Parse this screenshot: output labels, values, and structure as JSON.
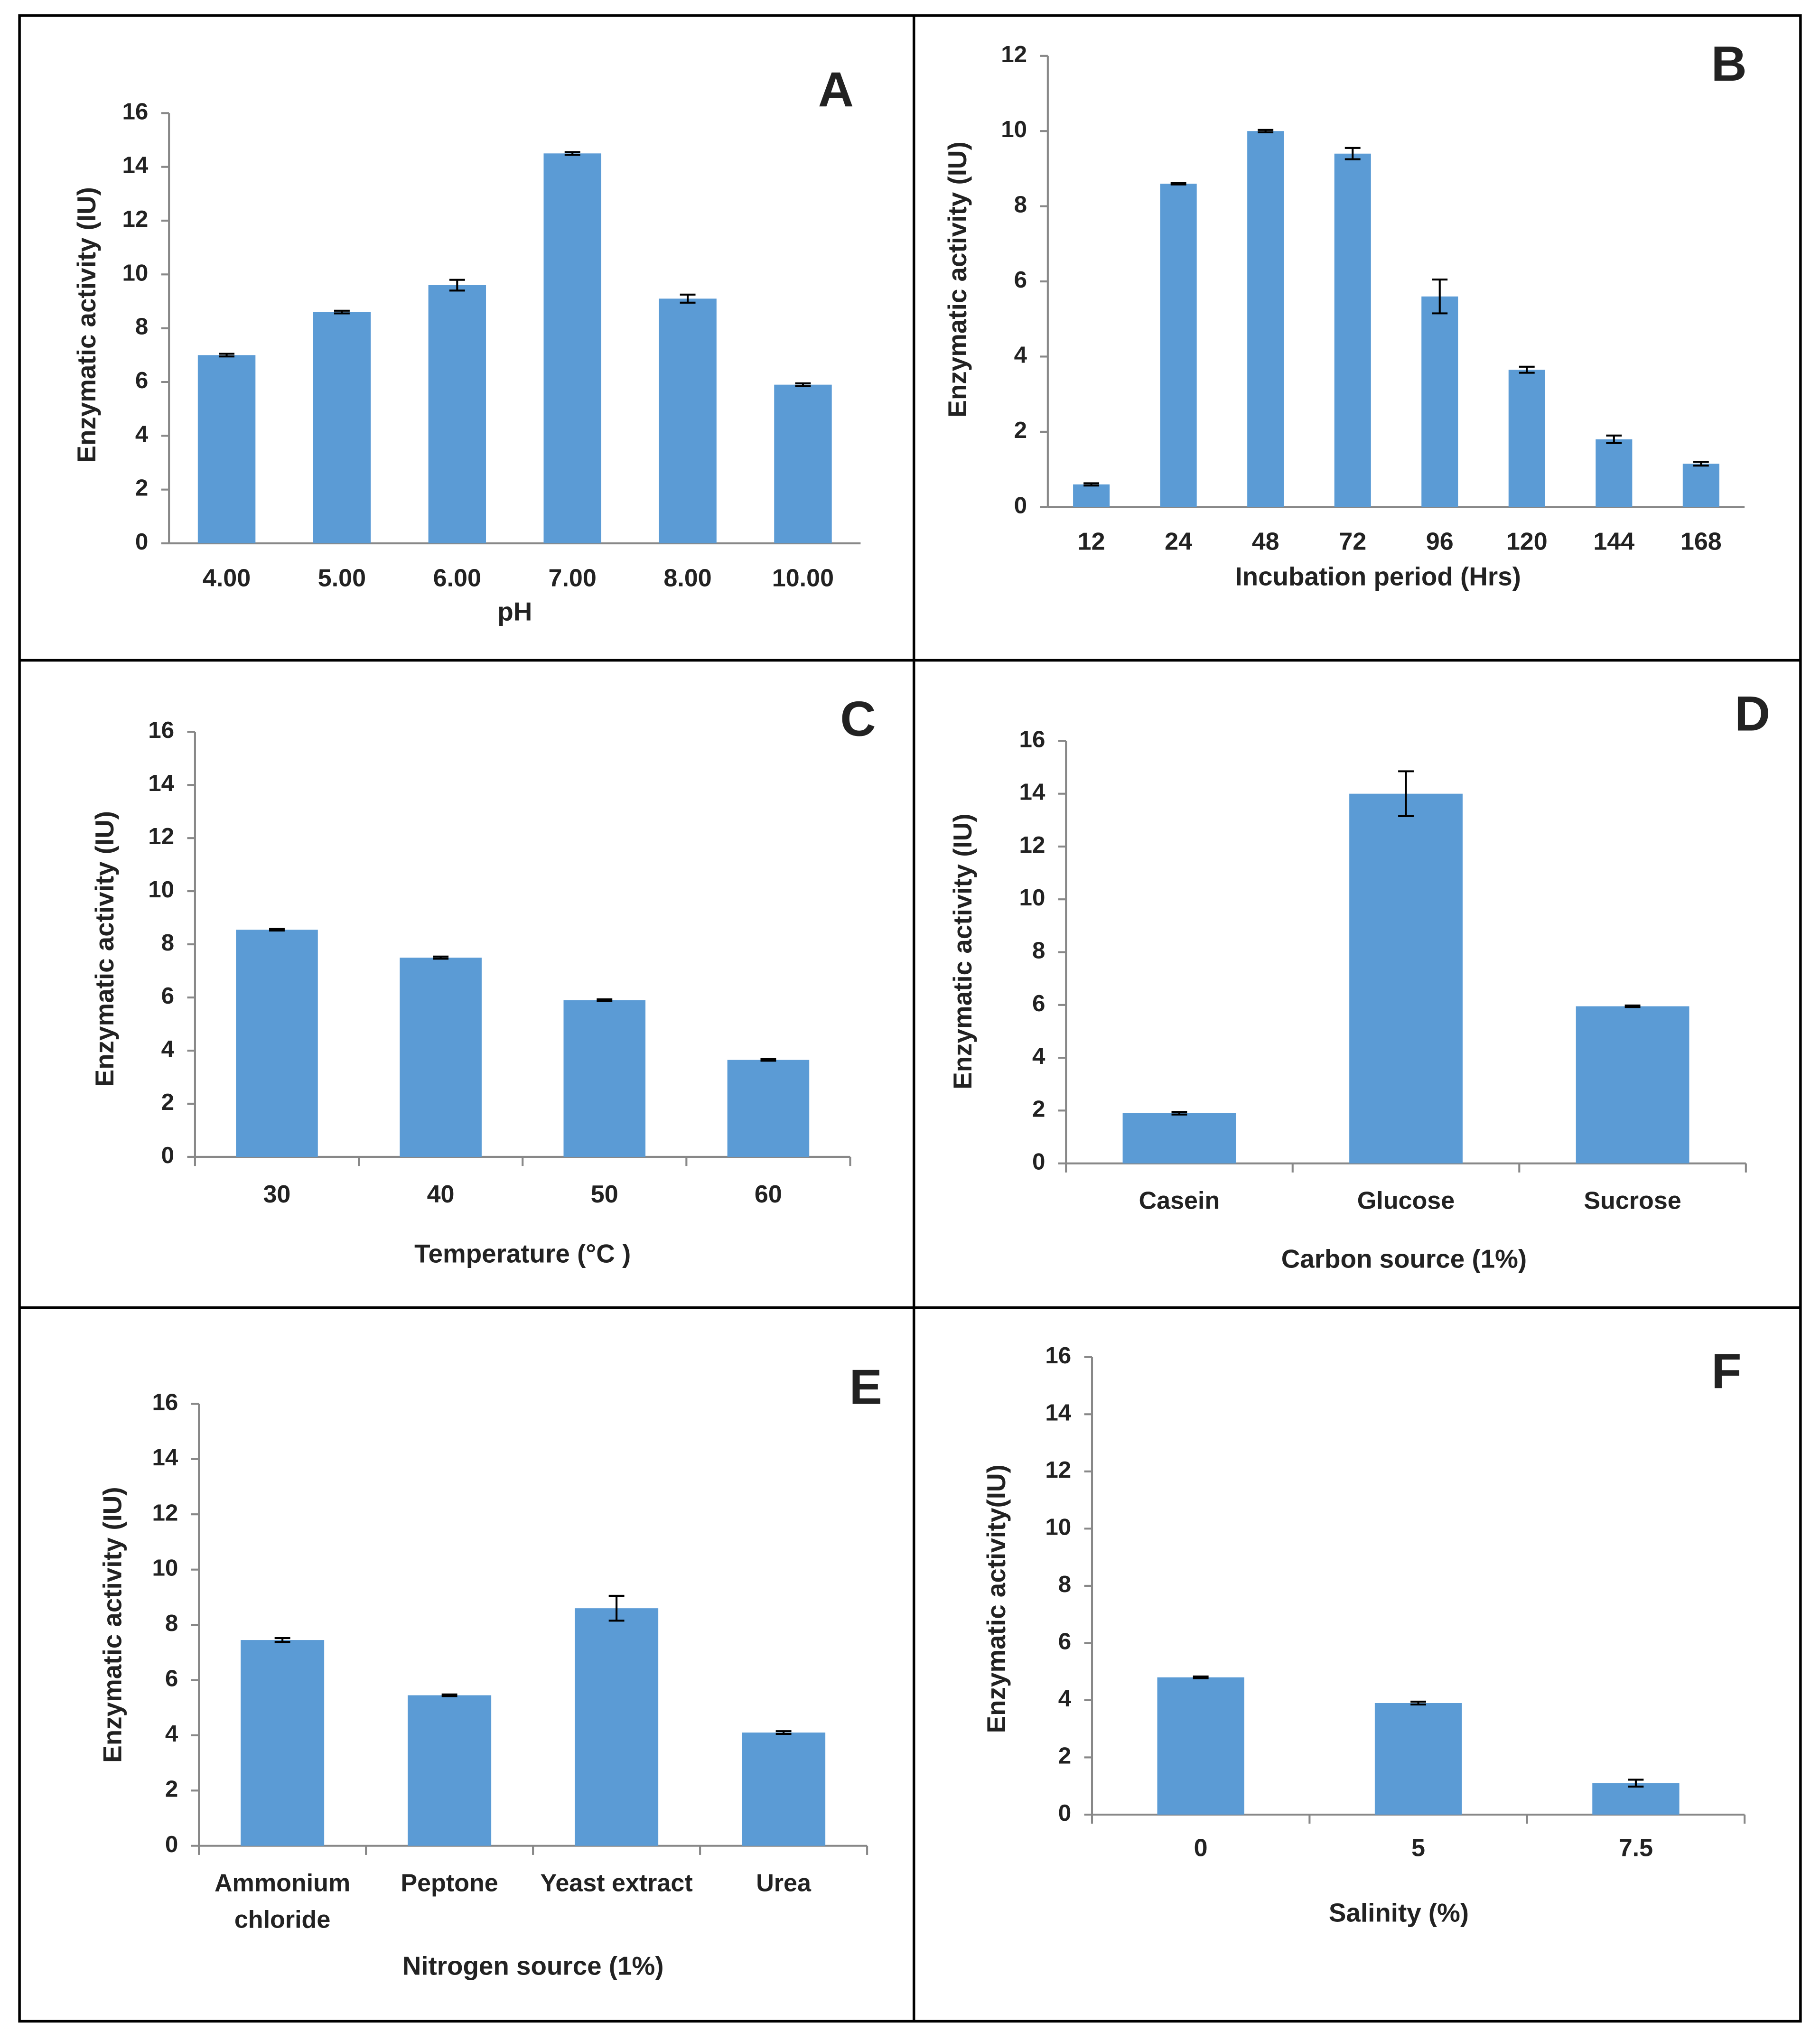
{
  "chart_data": [
    {
      "type": "bar",
      "panel": "A",
      "x_label": "pH",
      "y_label": "Enzymatic activity (IU)",
      "categories": [
        "4.00",
        "5.00",
        "6.00",
        "7.00",
        "8.00",
        "10.00"
      ],
      "values": [
        7.0,
        8.6,
        9.6,
        14.5,
        9.1,
        5.9
      ],
      "errors": [
        0.05,
        0.05,
        0.2,
        0.05,
        0.15,
        0.05
      ],
      "color": "#5b9bd5",
      "ylim": [
        0,
        16
      ],
      "yticks": [
        0,
        2,
        4,
        6,
        8,
        10,
        12,
        14,
        16
      ]
    },
    {
      "type": "bar",
      "panel": "B",
      "x_label": "Incubation period (Hrs)",
      "y_label": "Enzymatic activity (IU)",
      "categories": [
        "12",
        "24",
        "48",
        "72",
        "96",
        "120",
        "144",
        "168"
      ],
      "values": [
        0.6,
        8.6,
        10.0,
        9.4,
        5.6,
        3.65,
        1.8,
        1.15
      ],
      "errors": [
        0.03,
        0.02,
        0.03,
        0.15,
        0.45,
        0.08,
        0.1,
        0.05
      ],
      "color": "#5b9bd5",
      "ylim": [
        0,
        12
      ],
      "yticks": [
        0,
        2,
        4,
        6,
        8,
        10,
        12
      ]
    },
    {
      "type": "bar",
      "panel": "C",
      "x_label": "Temperature (°C )",
      "y_label": "Enzymatic activity (IU)",
      "categories": [
        "30",
        "40",
        "50",
        "60"
      ],
      "values": [
        8.55,
        7.5,
        5.9,
        3.65
      ],
      "errors": [
        0.03,
        0.04,
        0.03,
        0.03
      ],
      "color": "#5b9bd5",
      "ylim": [
        0,
        16
      ],
      "yticks": [
        0,
        2,
        4,
        6,
        8,
        10,
        12,
        14,
        16
      ]
    },
    {
      "type": "bar",
      "panel": "D",
      "x_label": "Carbon source (1%)",
      "y_label": "Enzymatic activity (IU)",
      "categories": [
        "Casein",
        "Glucose",
        "Sucrose"
      ],
      "values": [
        1.9,
        14.0,
        5.95
      ],
      "errors": [
        0.05,
        0.85,
        0.03
      ],
      "color": "#5b9bd5",
      "ylim": [
        0,
        16
      ],
      "yticks": [
        0,
        2,
        4,
        6,
        8,
        10,
        12,
        14,
        16
      ]
    },
    {
      "type": "bar",
      "panel": "E",
      "x_label": "Nitrogen source (1%)",
      "y_label": "Enzymatic activity (IU)",
      "categories": [
        "Ammonium chloride",
        "Peptone",
        "Yeast extract",
        "Urea"
      ],
      "values": [
        7.45,
        5.45,
        8.6,
        4.1
      ],
      "errors": [
        0.07,
        0.03,
        0.45,
        0.05
      ],
      "color": "#5b9bd5",
      "ylim": [
        0,
        16
      ],
      "yticks": [
        0,
        2,
        4,
        6,
        8,
        10,
        12,
        14,
        16
      ]
    },
    {
      "type": "bar",
      "panel": "F",
      "x_label": "Salinity (%)",
      "y_label": "Enzymatic activity(IU)",
      "categories": [
        "0",
        "5",
        "7.5"
      ],
      "values": [
        4.8,
        3.9,
        1.1
      ],
      "errors": [
        0.03,
        0.05,
        0.12
      ],
      "color": "#5b9bd5",
      "ylim": [
        0,
        16
      ],
      "yticks": [
        0,
        2,
        4,
        6,
        8,
        10,
        12,
        14,
        16
      ]
    }
  ]
}
